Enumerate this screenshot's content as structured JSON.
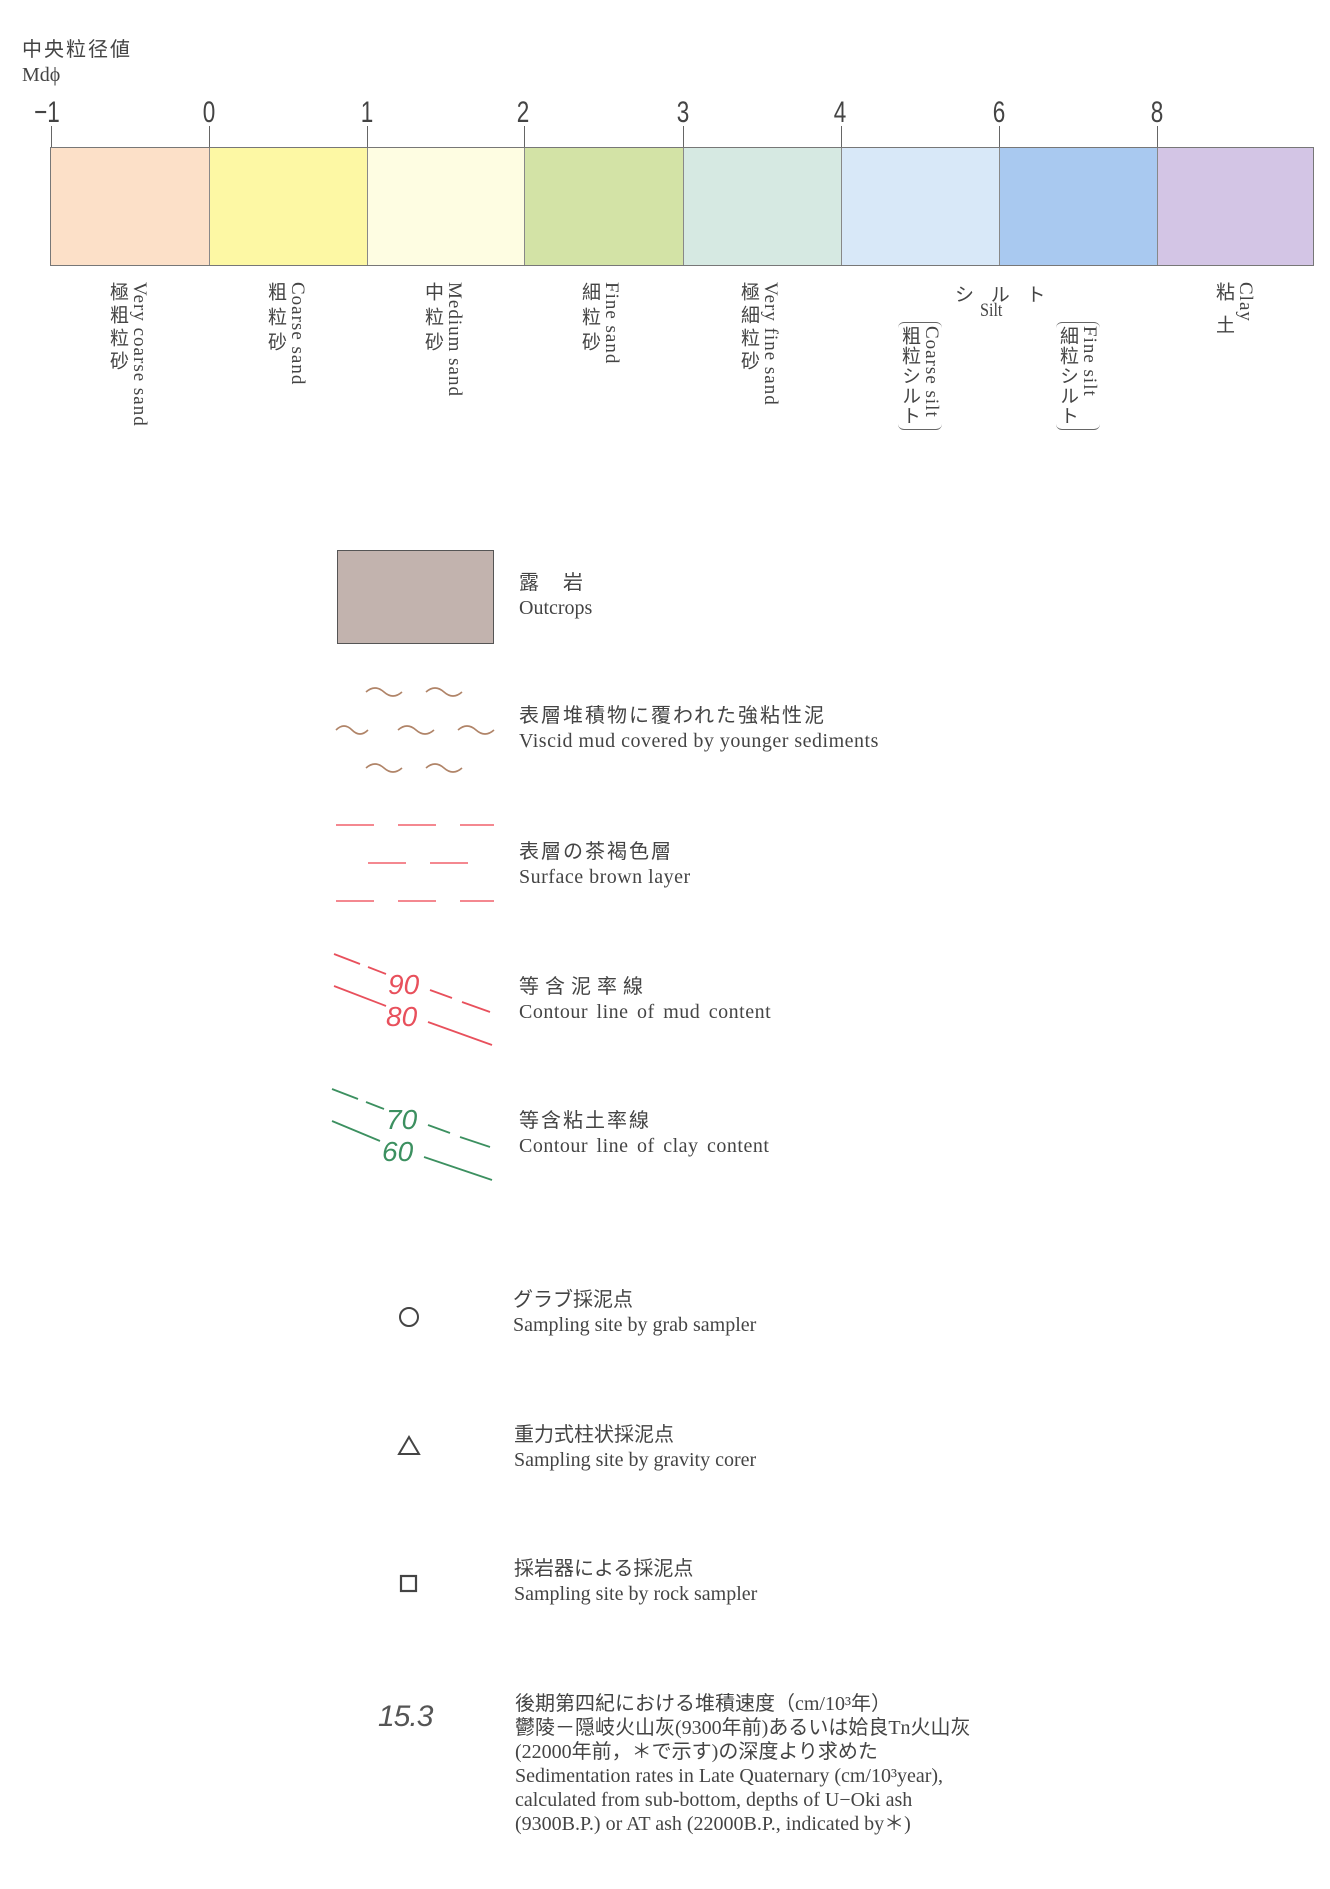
{
  "scale": {
    "title_jp": "中央粒径値",
    "title_en": "Mdϕ",
    "ticks": [
      "−1",
      "0",
      "1",
      "2",
      "3",
      "4",
      "6",
      "8"
    ],
    "segments": [
      {
        "color": "#fce0c8",
        "en": "Very coarse sand",
        "jp": "極粗粒砂"
      },
      {
        "color": "#fdf8a4",
        "en": "Coarse sand",
        "jp": "粗粒砂"
      },
      {
        "color": "#fefde2",
        "en": "Medium sand",
        "jp": "中粒砂"
      },
      {
        "color": "#d3e3a6",
        "en": "Fine sand",
        "jp": "細粒砂"
      },
      {
        "color": "#d6e9e2",
        "en": "Very fine sand",
        "jp": "極細粒砂"
      },
      {
        "color": "#d8e8f8",
        "en": "Coarse silt",
        "jp": "粗粒シルト"
      },
      {
        "color": "#a9c9f0",
        "en": "Fine silt",
        "jp": "細粒シルト"
      },
      {
        "color": "#d3c5e5",
        "en": "Clay",
        "jp": "粘土"
      }
    ],
    "silt_jp": "シ ル ト",
    "silt_en": "Silt"
  },
  "legend": {
    "outcrops": {
      "jp": "露　岩",
      "en": "Outcrops",
      "color": "#c2b3ae"
    },
    "viscid_mud": {
      "jp": "表層堆積物に覆われた強粘性泥",
      "en": "Viscid mud covered by younger sediments",
      "color": "#b08468"
    },
    "surface_brown": {
      "jp": "表層の茶褐色層",
      "en": "Surface brown layer",
      "color": "#f0606c"
    },
    "mud_contour": {
      "jp": "等含泥率線",
      "en": "Contour line of mud content",
      "label_a": "90",
      "label_b": "80",
      "color": "#e8505c"
    },
    "clay_contour": {
      "jp": "等含粘土率線",
      "en": "Contour line of clay content",
      "label_a": "70",
      "label_b": "60",
      "color": "#3c9060"
    },
    "grab": {
      "jp": "グラブ採泥点",
      "en": "Sampling site by grab sampler",
      "icon": "circle"
    },
    "gravity": {
      "jp": "重力式柱状採泥点",
      "en": "Sampling site by gravity corer",
      "icon": "triangle"
    },
    "rock": {
      "jp": "採岩器による採泥点",
      "en": "Sampling site by rock sampler",
      "icon": "square"
    },
    "sedimentation": {
      "value": "15.3",
      "lines": [
        "後期第四紀における堆積速度（cm/10³年）",
        "鬱陵－隠岐火山灰(9300年前)あるいは姶良Tn火山灰",
        "(22000年前，＊で示す)の深度より求めた",
        "Sedimentation rates in Late Quaternary (cm/10³year),",
        "calculated from sub-bottom, depths of U−Oki ash",
        "(9300B.P.) or AT ash (22000B.P., indicated by＊)"
      ]
    }
  }
}
